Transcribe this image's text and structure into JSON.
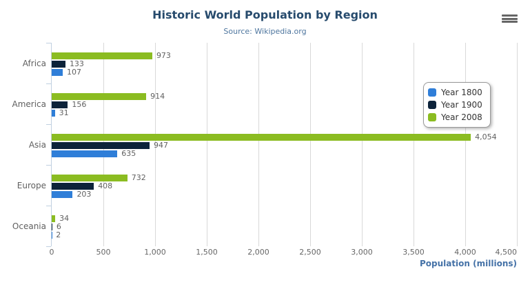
{
  "chart_data": {
    "type": "bar",
    "orientation": "horizontal",
    "title": "Historic World Population by Region",
    "subtitle": "Source: Wikipedia.org",
    "categories": [
      "Africa",
      "America",
      "Asia",
      "Europe",
      "Oceania"
    ],
    "series": [
      {
        "name": "Year 1800",
        "color": "#2f7ed8",
        "values": [
          107,
          31,
          635,
          203,
          2
        ]
      },
      {
        "name": "Year 1900",
        "color": "#0d233a",
        "values": [
          133,
          156,
          947,
          408,
          6
        ]
      },
      {
        "name": "Year 2008",
        "color": "#8bbc21",
        "values": [
          973,
          914,
          4054,
          732,
          34
        ]
      }
    ],
    "bar_display_order_top_to_bottom": [
      "Year 2008",
      "Year 1900",
      "Year 1800"
    ],
    "data_labels_visible": true,
    "value_axis": {
      "title": "Population (millions)",
      "min": 0,
      "max": 4500,
      "tick_interval": 500,
      "tick_labels": [
        "0",
        "500",
        "1,000",
        "1,500",
        "2,000",
        "2,500",
        "3,000",
        "3,500",
        "4,000",
        "4,500"
      ]
    },
    "grid": "vertical-lines",
    "legend": {
      "position": "right-middle",
      "items": [
        {
          "label": "Year 1800",
          "color": "#2f7ed8"
        },
        {
          "label": "Year 1900",
          "color": "#0d233a"
        },
        {
          "label": "Year 2008",
          "color": "#8bbc21"
        }
      ]
    }
  },
  "toolbar": {
    "context_menu_icon": "hamburger-icon"
  },
  "colors": {
    "title": "#274b6d",
    "subtitle": "#4d759e",
    "axis_title": "#4572a7",
    "axis_line": "#c0d0e0",
    "gridline": "#d8d8d8",
    "labels": "#606060",
    "menu_icon": "#666666",
    "background": "#ffffff"
  }
}
